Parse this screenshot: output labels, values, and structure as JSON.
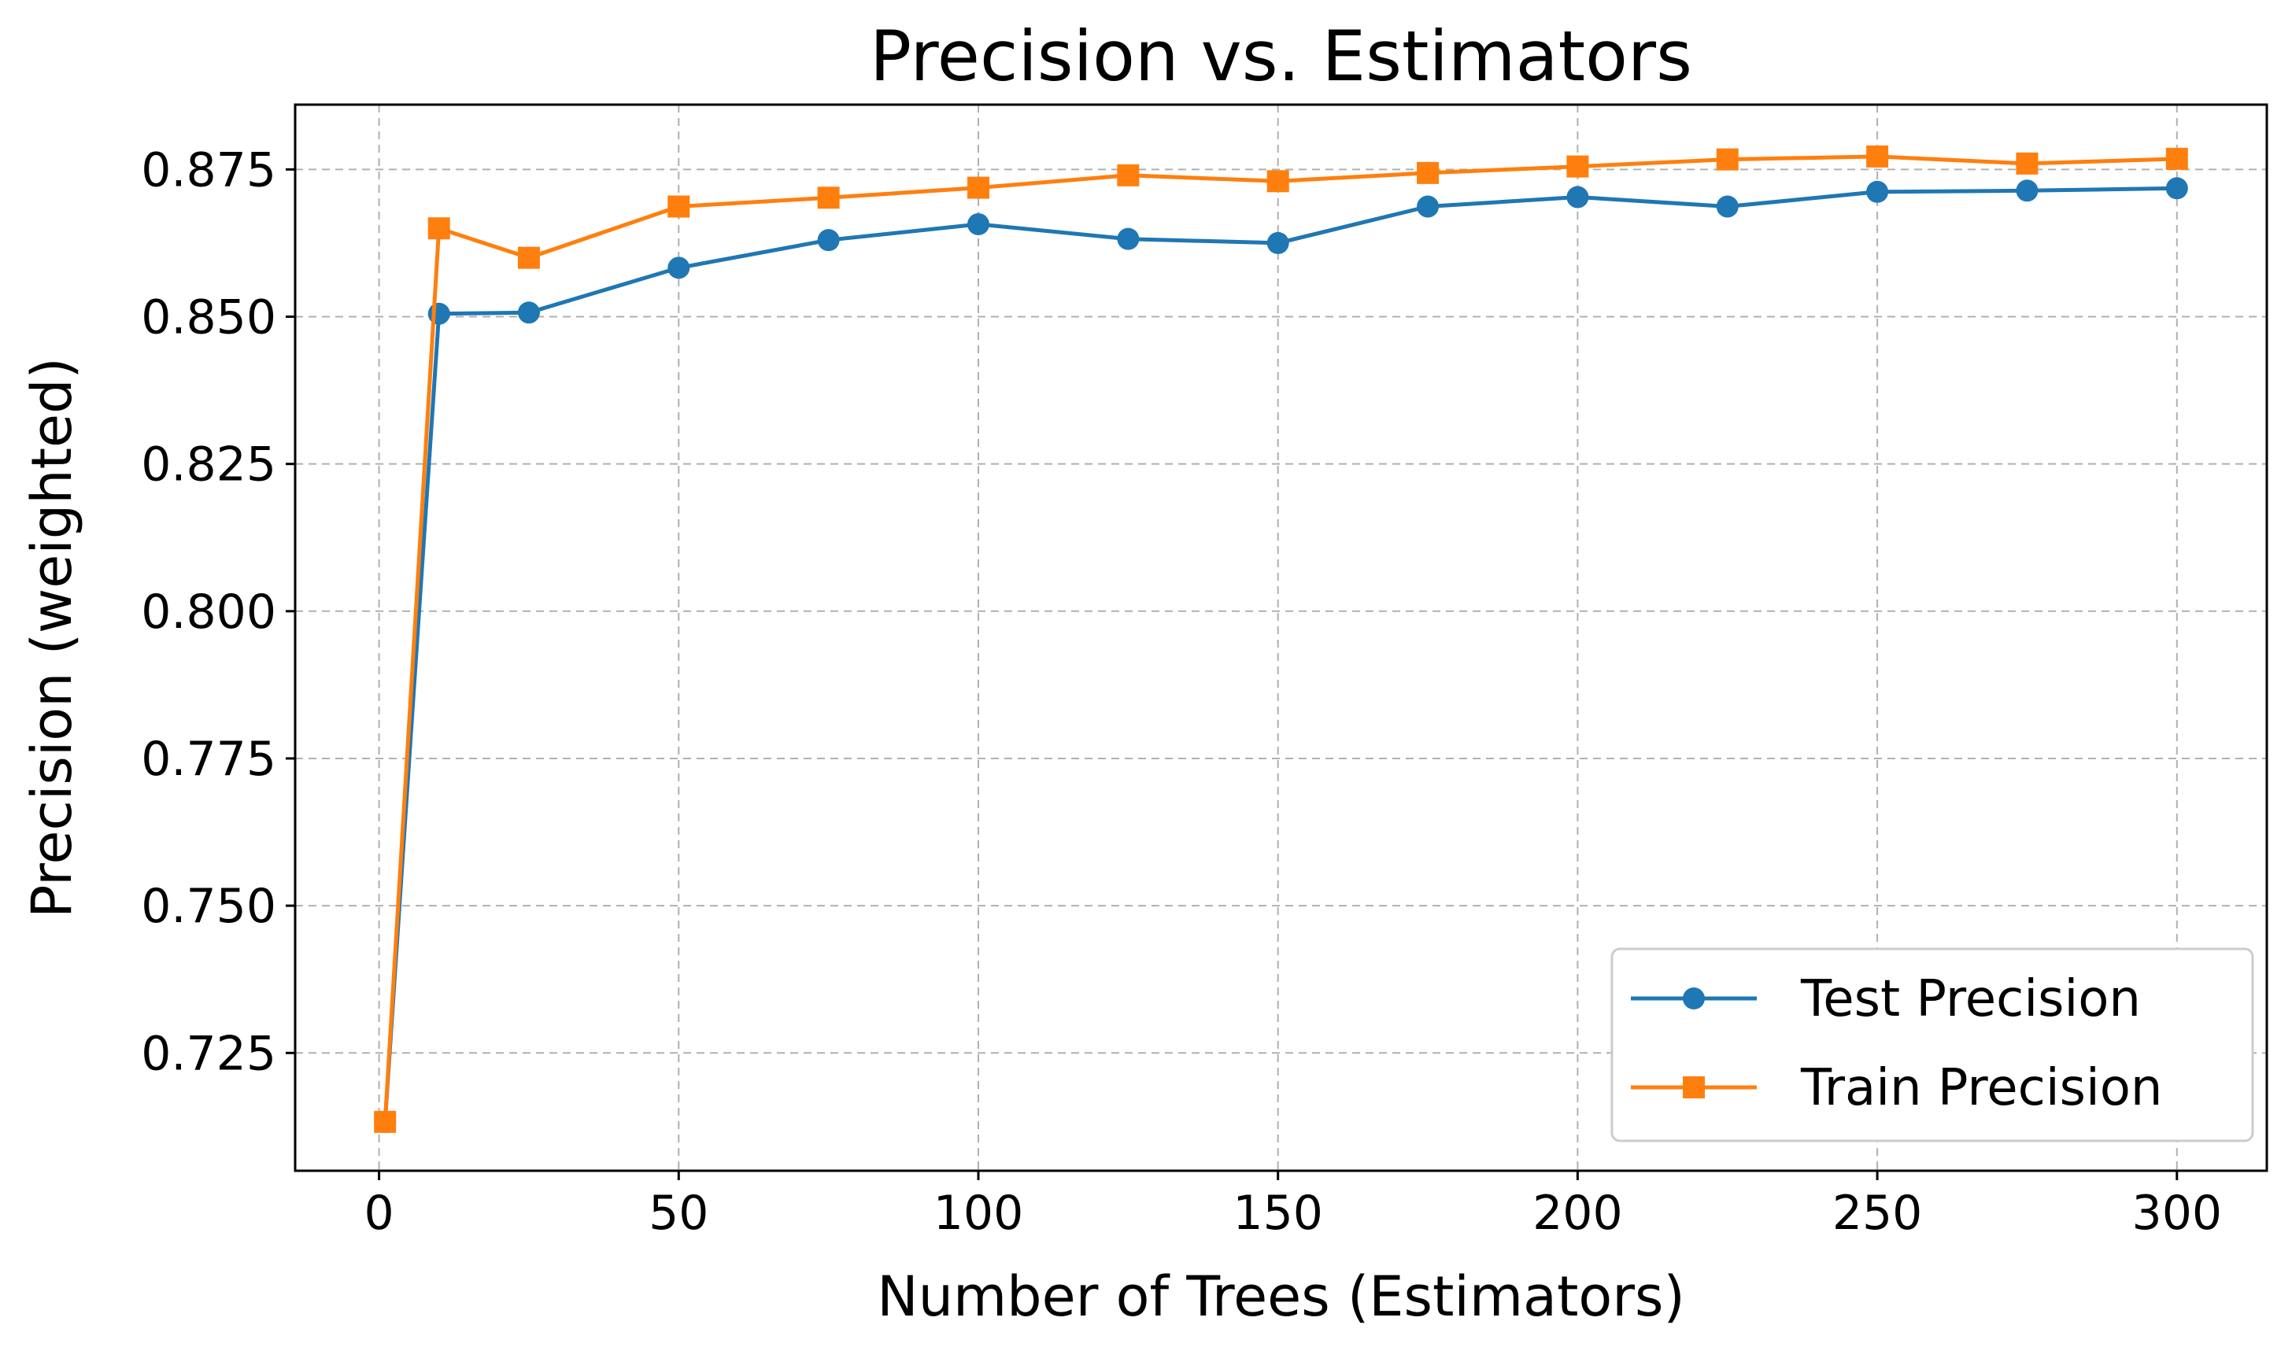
{
  "chart_data": {
    "type": "line",
    "title": "Precision vs. Estimators",
    "xlabel": "Number of Trees (Estimators)",
    "ylabel": "Precision (weighted)",
    "xlim": [
      -14,
      315
    ],
    "ylim": [
      0.705,
      0.886
    ],
    "xticks": [
      0,
      50,
      100,
      150,
      200,
      250,
      300
    ],
    "xtick_labels": [
      "0",
      "50",
      "100",
      "150",
      "200",
      "250",
      "300"
    ],
    "yticks": [
      0.725,
      0.75,
      0.775,
      0.8,
      0.825,
      0.85,
      0.875
    ],
    "ytick_labels": [
      "0.725",
      "0.750",
      "0.775",
      "0.800",
      "0.825",
      "0.850",
      "0.875"
    ],
    "grid": true,
    "legend_position": "lower-right",
    "x": [
      1,
      10,
      25,
      50,
      75,
      100,
      125,
      150,
      175,
      200,
      225,
      250,
      275,
      300
    ],
    "series": [
      {
        "name": "Test Precision",
        "color": "#1f77b4",
        "marker": "circle",
        "values": [
          0.7133,
          0.8505,
          0.8507,
          0.8583,
          0.863,
          0.8657,
          0.8632,
          0.8625,
          0.8687,
          0.8703,
          0.8687,
          0.8712,
          0.8714,
          0.8718
        ]
      },
      {
        "name": "Train Precision",
        "color": "#ff7f0e",
        "marker": "square",
        "values": [
          0.7133,
          0.865,
          0.86,
          0.8687,
          0.8702,
          0.8719,
          0.874,
          0.873,
          0.8744,
          0.8755,
          0.8767,
          0.8772,
          0.876,
          0.8768
        ]
      }
    ]
  }
}
